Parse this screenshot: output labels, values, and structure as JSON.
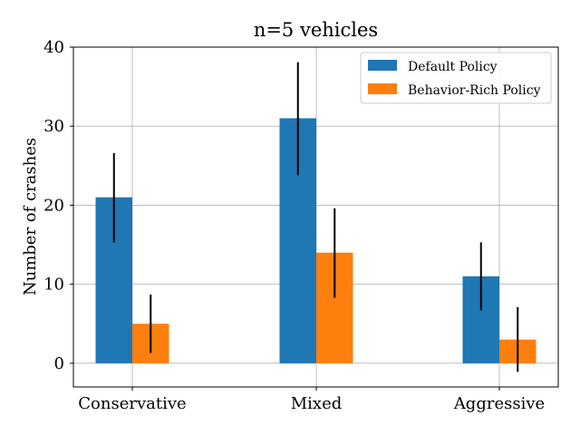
{
  "chart_data": {
    "type": "bar",
    "title": "n=5 vehicles",
    "xlabel": "",
    "ylabel": "Number of crashes",
    "categories": [
      "Conservative",
      "Mixed",
      "Aggressive"
    ],
    "ylim": [
      -3,
      40
    ],
    "yticks": [
      0,
      10,
      20,
      30,
      40
    ],
    "grid": true,
    "legend_position": "top-right",
    "series": [
      {
        "name": "Default Policy",
        "color": "#1f77b4",
        "values": [
          21,
          31,
          11
        ],
        "error_low": [
          15.3,
          23.8,
          6.7
        ],
        "error_high": [
          26.6,
          38.1,
          15.3
        ]
      },
      {
        "name": "Behavior-Rich Policy",
        "color": "#ff7f0e",
        "values": [
          5,
          14,
          3
        ],
        "error_low": [
          1.3,
          8.3,
          -1.1
        ],
        "error_high": [
          8.7,
          19.6,
          7.1
        ]
      }
    ]
  }
}
